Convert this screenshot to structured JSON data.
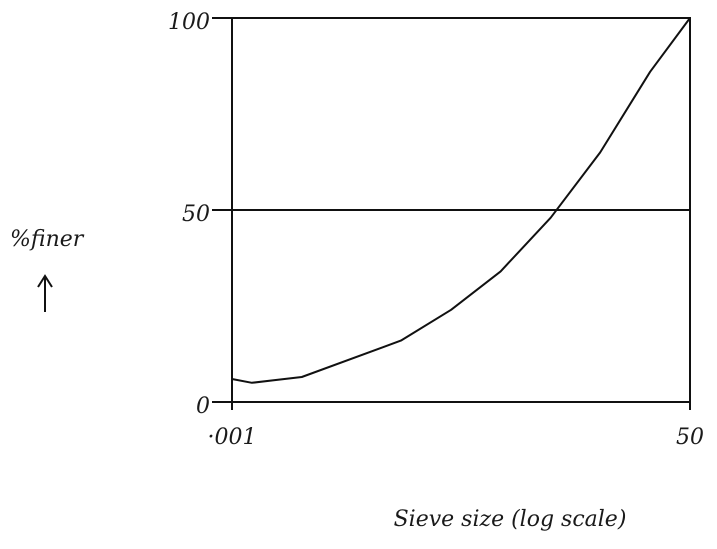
{
  "chart_data": {
    "type": "line",
    "x_label": "Sieve size (log scale)",
    "y_label": "%finer",
    "x": [
      0.001,
      0.0016,
      0.0052,
      0.054,
      0.177,
      0.57,
      1.86,
      6.0,
      19.5,
      50
    ],
    "series": [
      {
        "color": "#111111",
        "values": [
          6,
          5,
          6.5,
          16,
          24,
          34,
          48,
          65,
          86,
          100
        ]
      }
    ],
    "xlim": [
      0.001,
      50
    ],
    "xscale": "log",
    "xticks": [
      {
        "value": 0.001,
        "label": "·001"
      },
      50
    ],
    "ylim": [
      0,
      100
    ],
    "yticks": [
      0,
      50,
      100
    ],
    "grid": true
  }
}
